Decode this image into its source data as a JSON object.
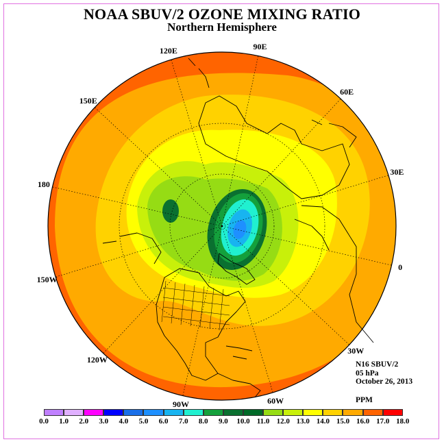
{
  "title": "NOAA SBUV/2 OZONE MIXING RATIO",
  "subtitle": "Northern Hemisphere",
  "longitude_labels": [
    "90E",
    "60E",
    "30E",
    "0",
    "30W",
    "60W",
    "90W",
    "120W",
    "150W",
    "180",
    "150E",
    "120E"
  ],
  "info": {
    "instrument": "N16 SBUV/2",
    "level": "05 hPa",
    "date": "October 26, 2013",
    "units": "PPM"
  },
  "colorbar": {
    "ticks": [
      "0.0",
      "1.0",
      "2.0",
      "3.0",
      "4.0",
      "5.0",
      "6.0",
      "7.0",
      "8.0",
      "9.0",
      "10.0",
      "11.0",
      "12.0",
      "13.0",
      "14.0",
      "15.0",
      "16.0",
      "17.0",
      "18.0"
    ],
    "colors": [
      "#c080ff",
      "#e0b0ff",
      "#ff00ff",
      "#0000ff",
      "#1a6fe8",
      "#1e90ff",
      "#18b4f0",
      "#20f0d0",
      "#14a03c",
      "#0a7030",
      "#006a28",
      "#96dc14",
      "#c8f00a",
      "#ffff00",
      "#ffd200",
      "#ffaa00",
      "#ff6400",
      "#ff0000",
      "#8b5a3c"
    ]
  },
  "field_colors": {
    "outer": "#ff6400",
    "band_15": "#ffaa00",
    "band_14": "#ffd200",
    "band_13": "#ffff00",
    "band_12": "#c8f00a",
    "band_11": "#96dc14",
    "band_10": "#0a7030",
    "band_9": "#14a03c",
    "band_7": "#20f0d0",
    "band_6": "#18b4f0",
    "band_5": "#1e90ff"
  }
}
